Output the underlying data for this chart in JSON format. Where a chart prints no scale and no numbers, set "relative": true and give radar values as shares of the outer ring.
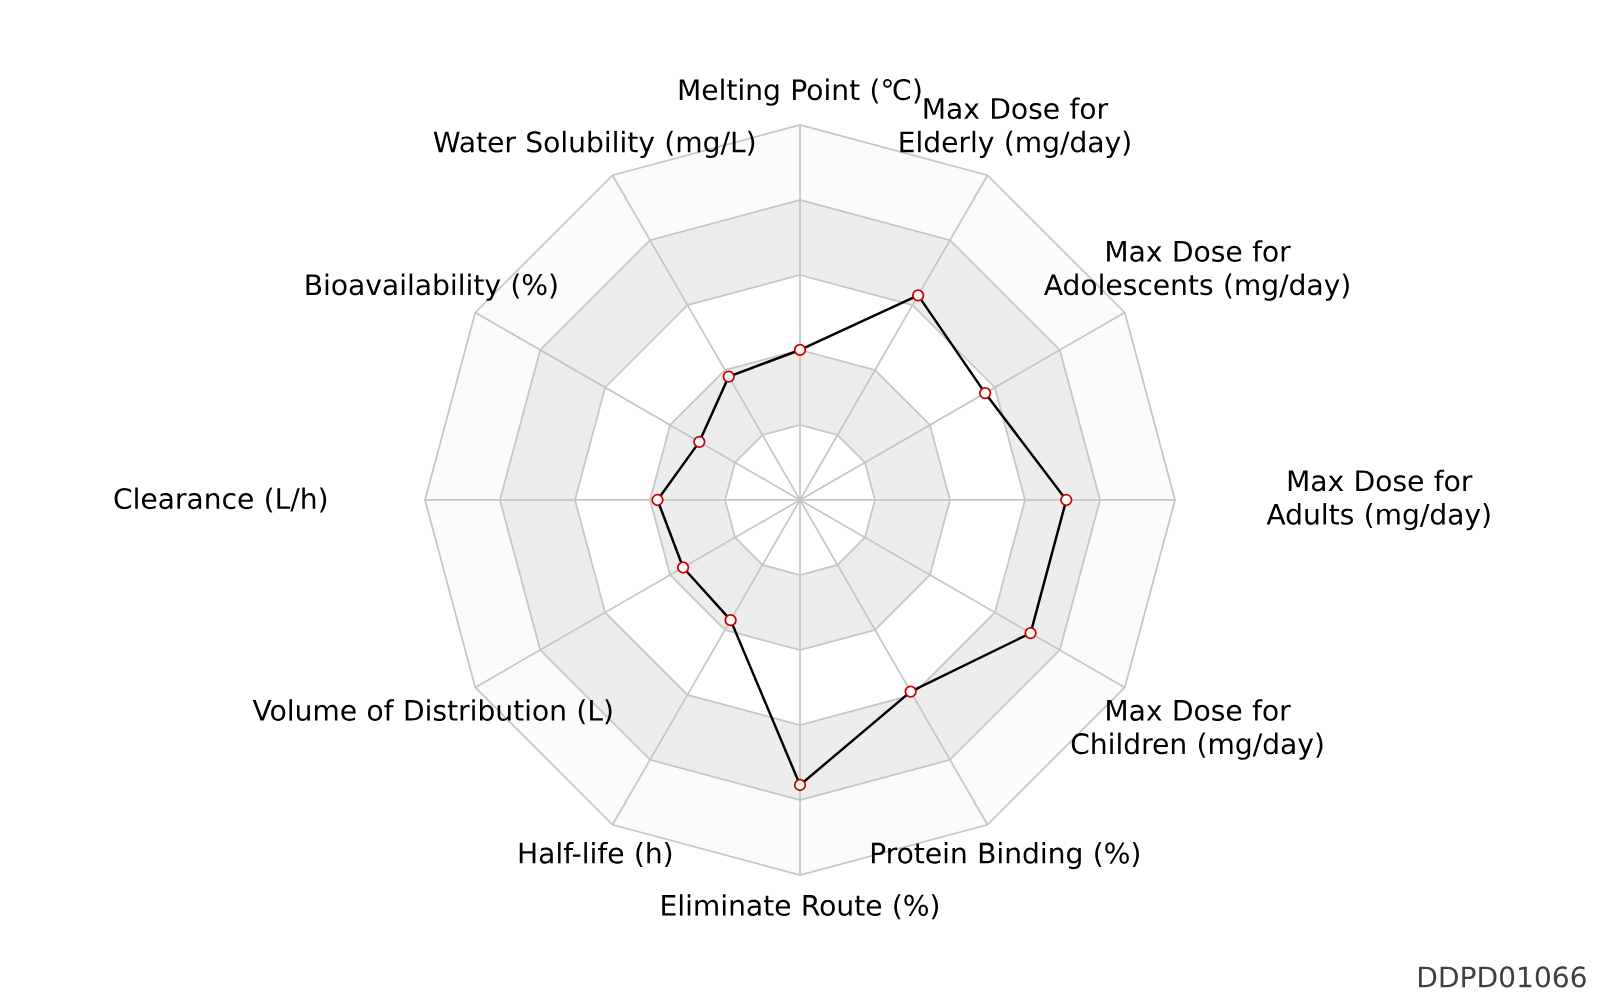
{
  "chart_data": {
    "type": "radar",
    "relative": true,
    "grid": true,
    "marker": "circle",
    "line_style": "solid",
    "categories": [
      "Melting Point (℃)",
      "Max Dose for Elderly (mg/day)",
      "Max Dose for Adolescents (mg/day)",
      "Max Dose for Adults (mg/day)",
      "Max Dose for Children (mg/day)",
      "Protein Binding (%)",
      "Eliminate Route (%)",
      "Half-life (h)",
      "Volume of Distribution (L)",
      "Clearance (L/h)",
      "Bioavailability (%)",
      "Water Solubility (mg/L)"
    ],
    "series": [
      {
        "color": "#000000",
        "values": [
          0.4,
          0.63,
          0.57,
          0.71,
          0.71,
          0.59,
          0.76,
          0.37,
          0.36,
          0.38,
          0.31,
          0.38
        ]
      }
    ],
    "annotations": [
      "DDPD01066"
    ]
  }
}
